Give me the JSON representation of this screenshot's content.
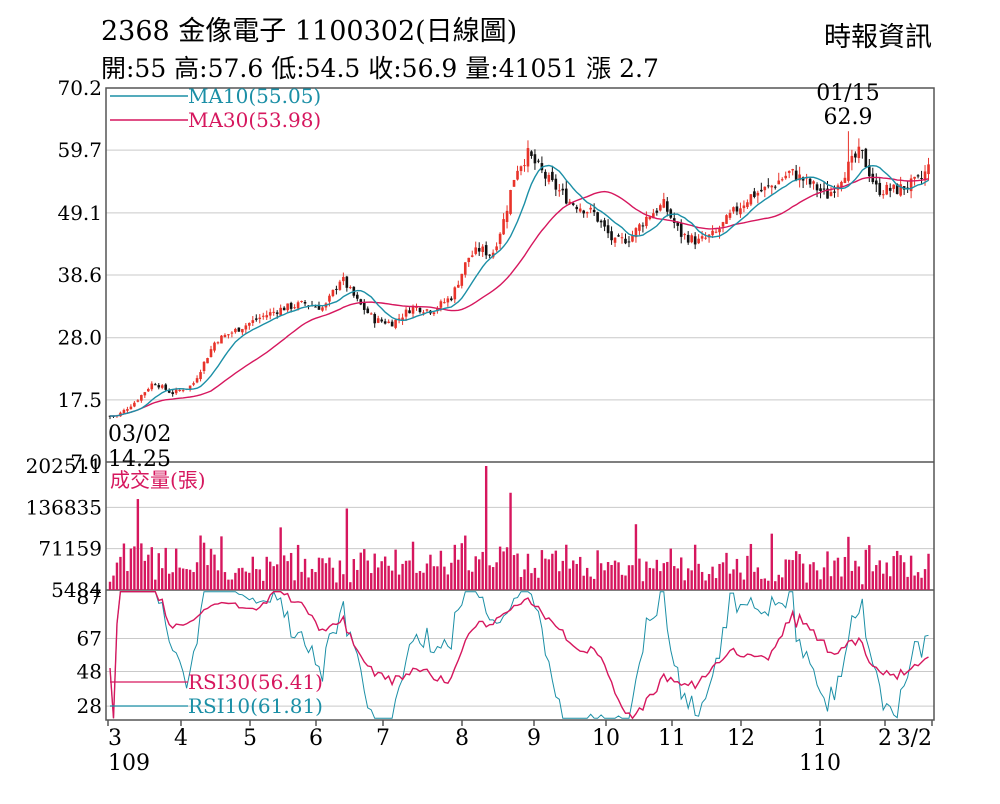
{
  "header": {
    "title": "2368  金像電子 1100302(日線圖)",
    "quote": "開:55 高:57.6 低:54.5 收:56.9 量:41051 漲 2.7",
    "source": "時報資訊"
  },
  "colors": {
    "up": "#e8332a",
    "down": "#111111",
    "ma10": "#1b8fa6",
    "ma30": "#d6175e",
    "volume": "#d6175e",
    "rsi30": "#d6175e",
    "rsi10": "#1b8fa6",
    "grid": "#c9c9c9",
    "frame": "#555555"
  },
  "chart_data": [
    {
      "type": "candlestick",
      "panel": "price",
      "y_ticks": [
        "70.2",
        "59.7",
        "49.1",
        "38.6",
        "28.0",
        "17.5",
        "7.0"
      ],
      "ylim": [
        7.0,
        70.2
      ],
      "grid": true,
      "legend": [
        {
          "name": "MA10(55.05)",
          "color": "#1b8fa6"
        },
        {
          "name": "MA30(53.98)",
          "color": "#d6175e"
        }
      ],
      "annotations": [
        {
          "label": "01/15",
          "value": "62.9",
          "month": "1",
          "kind": "high"
        },
        {
          "label": "03/02",
          "value": "14.25",
          "month": "3",
          "kind": "low"
        }
      ],
      "x_month_labels": [
        "3",
        "4",
        "5",
        "6",
        "7",
        "8",
        "9",
        "10",
        "11",
        "12",
        "1",
        "2",
        "3/2"
      ],
      "year_labels": [
        {
          "month": "3",
          "label": "109"
        },
        {
          "month": "1",
          "label": "110"
        }
      ],
      "close_path": [
        [
          "3",
          14.8
        ],
        [
          "3",
          17.2
        ],
        [
          "3",
          20.5
        ],
        [
          "3",
          18.6
        ],
        [
          "4",
          20.0
        ],
        [
          "4",
          27.5
        ],
        [
          "4",
          29.5
        ],
        [
          "5",
          31.5
        ],
        [
          "5",
          33.0
        ],
        [
          "5",
          33.8
        ],
        [
          "6",
          33.0
        ],
        [
          "6",
          38.2
        ],
        [
          "6",
          34.0
        ],
        [
          "6",
          31.0
        ],
        [
          "7",
          30.5
        ],
        [
          "7",
          33.2
        ],
        [
          "7",
          32.6
        ],
        [
          "7",
          35.0
        ],
        [
          "8",
          41.5
        ],
        [
          "8",
          43.0
        ],
        [
          "8",
          42.0
        ],
        [
          "8",
          48.0
        ],
        [
          "8",
          56.5
        ],
        [
          "8",
          59.0
        ],
        [
          "9",
          55.0
        ],
        [
          "9",
          51.0
        ],
        [
          "9",
          49.0
        ],
        [
          "10",
          44.0
        ],
        [
          "10",
          45.0
        ],
        [
          "10",
          48.5
        ],
        [
          "10",
          50.5
        ],
        [
          "11",
          45.5
        ],
        [
          "11",
          44.2
        ],
        [
          "11",
          45.5
        ],
        [
          "11",
          49.0
        ],
        [
          "12",
          52.0
        ],
        [
          "12",
          53.5
        ],
        [
          "12",
          56.0
        ],
        [
          "12",
          54.0
        ],
        [
          "1",
          52.0
        ],
        [
          "1",
          56.0
        ],
        [
          "1",
          59.5
        ],
        [
          "1",
          53.0
        ],
        [
          "2",
          53.0
        ],
        [
          "2",
          54.5
        ],
        [
          "3/2",
          56.9
        ]
      ]
    },
    {
      "type": "bar",
      "panel": "volume",
      "series": [
        {
          "name": "成交量(張)",
          "color": "#d6175e"
        }
      ],
      "y_ticks": [
        "202511",
        "136835",
        "71159",
        "5484"
      ],
      "ylim": [
        5484,
        202511
      ],
      "spikes": [
        {
          "month": "3",
          "value": 150000
        },
        {
          "month": "5",
          "value": 105000
        },
        {
          "month": "6",
          "value": 135000
        },
        {
          "month": "8",
          "value": 202511
        },
        {
          "month": "8",
          "value": 160000
        },
        {
          "month": "10",
          "value": 110000
        },
        {
          "month": "12",
          "value": 95000
        },
        {
          "month": "1",
          "value": 90000
        }
      ]
    },
    {
      "type": "line",
      "panel": "rsi",
      "series": [
        {
          "name": "RSI30(56.41)",
          "color": "#d6175e"
        },
        {
          "name": "RSI10(61.81)",
          "color": "#1b8fa6"
        }
      ],
      "y_ticks": [
        "87",
        "67",
        "48",
        "28"
      ],
      "ylim": [
        20,
        95
      ]
    }
  ]
}
